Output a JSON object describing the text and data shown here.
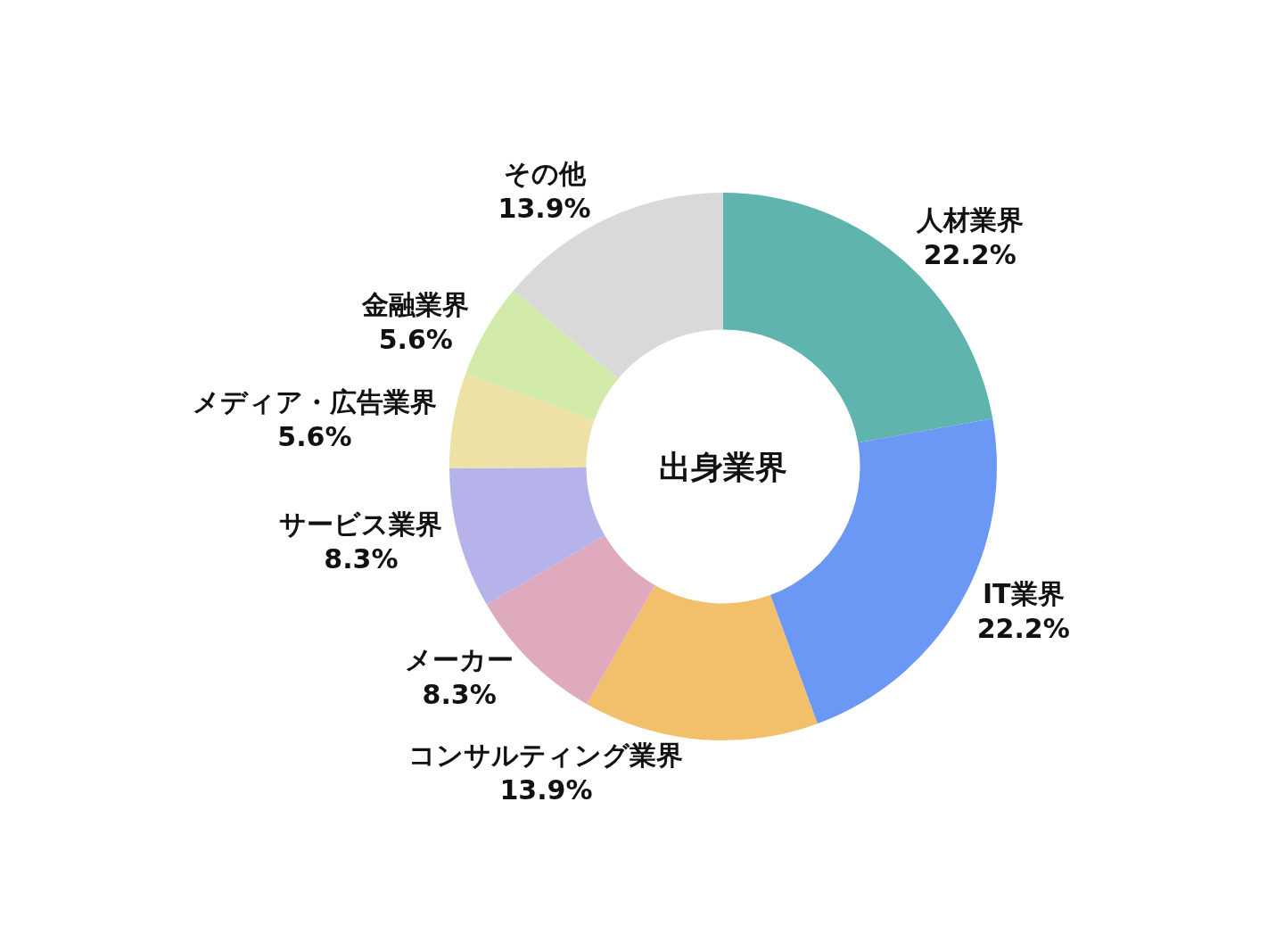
{
  "chart_data": {
    "type": "donut",
    "title": "出身業界",
    "categories": [
      "人材業界",
      "IT業界",
      "コンサルティング業界",
      "メーカー",
      "サービス業界",
      "メディア・広告業界",
      "金融業界",
      "その他"
    ],
    "values": [
      22.2,
      22.2,
      13.9,
      8.3,
      8.3,
      5.6,
      5.6,
      13.9
    ],
    "value_labels": [
      "22.2%",
      "22.2%",
      "13.9%",
      "8.3%",
      "8.3%",
      "5.6%",
      "5.6%",
      "13.9%"
    ],
    "colors": [
      "#5fb4ad",
      "#6a98f4",
      "#f2c06b",
      "#dfaabd",
      "#b5b3ea",
      "#ede1a6",
      "#d3ebaa",
      "#d9d9d9"
    ]
  }
}
